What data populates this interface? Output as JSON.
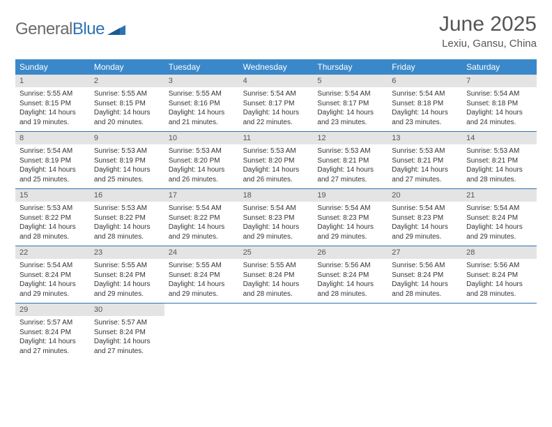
{
  "logo": {
    "part1": "General",
    "part2": "Blue"
  },
  "title": "June 2025",
  "location": "Lexiu, Gansu, China",
  "colors": {
    "header_bg": "#3a88c9",
    "header_text": "#ffffff",
    "daynum_bg": "#e4e4e4",
    "border": "#2d72b5",
    "logo_gray": "#6a6a6a",
    "logo_blue": "#2d72b5"
  },
  "day_names": [
    "Sunday",
    "Monday",
    "Tuesday",
    "Wednesday",
    "Thursday",
    "Friday",
    "Saturday"
  ],
  "weeks": [
    [
      {
        "n": "1",
        "sr": "5:55 AM",
        "ss": "8:15 PM",
        "dl": "14 hours and 19 minutes."
      },
      {
        "n": "2",
        "sr": "5:55 AM",
        "ss": "8:15 PM",
        "dl": "14 hours and 20 minutes."
      },
      {
        "n": "3",
        "sr": "5:55 AM",
        "ss": "8:16 PM",
        "dl": "14 hours and 21 minutes."
      },
      {
        "n": "4",
        "sr": "5:54 AM",
        "ss": "8:17 PM",
        "dl": "14 hours and 22 minutes."
      },
      {
        "n": "5",
        "sr": "5:54 AM",
        "ss": "8:17 PM",
        "dl": "14 hours and 23 minutes."
      },
      {
        "n": "6",
        "sr": "5:54 AM",
        "ss": "8:18 PM",
        "dl": "14 hours and 23 minutes."
      },
      {
        "n": "7",
        "sr": "5:54 AM",
        "ss": "8:18 PM",
        "dl": "14 hours and 24 minutes."
      }
    ],
    [
      {
        "n": "8",
        "sr": "5:54 AM",
        "ss": "8:19 PM",
        "dl": "14 hours and 25 minutes."
      },
      {
        "n": "9",
        "sr": "5:53 AM",
        "ss": "8:19 PM",
        "dl": "14 hours and 25 minutes."
      },
      {
        "n": "10",
        "sr": "5:53 AM",
        "ss": "8:20 PM",
        "dl": "14 hours and 26 minutes."
      },
      {
        "n": "11",
        "sr": "5:53 AM",
        "ss": "8:20 PM",
        "dl": "14 hours and 26 minutes."
      },
      {
        "n": "12",
        "sr": "5:53 AM",
        "ss": "8:21 PM",
        "dl": "14 hours and 27 minutes."
      },
      {
        "n": "13",
        "sr": "5:53 AM",
        "ss": "8:21 PM",
        "dl": "14 hours and 27 minutes."
      },
      {
        "n": "14",
        "sr": "5:53 AM",
        "ss": "8:21 PM",
        "dl": "14 hours and 28 minutes."
      }
    ],
    [
      {
        "n": "15",
        "sr": "5:53 AM",
        "ss": "8:22 PM",
        "dl": "14 hours and 28 minutes."
      },
      {
        "n": "16",
        "sr": "5:53 AM",
        "ss": "8:22 PM",
        "dl": "14 hours and 28 minutes."
      },
      {
        "n": "17",
        "sr": "5:54 AM",
        "ss": "8:22 PM",
        "dl": "14 hours and 29 minutes."
      },
      {
        "n": "18",
        "sr": "5:54 AM",
        "ss": "8:23 PM",
        "dl": "14 hours and 29 minutes."
      },
      {
        "n": "19",
        "sr": "5:54 AM",
        "ss": "8:23 PM",
        "dl": "14 hours and 29 minutes."
      },
      {
        "n": "20",
        "sr": "5:54 AM",
        "ss": "8:23 PM",
        "dl": "14 hours and 29 minutes."
      },
      {
        "n": "21",
        "sr": "5:54 AM",
        "ss": "8:24 PM",
        "dl": "14 hours and 29 minutes."
      }
    ],
    [
      {
        "n": "22",
        "sr": "5:54 AM",
        "ss": "8:24 PM",
        "dl": "14 hours and 29 minutes."
      },
      {
        "n": "23",
        "sr": "5:55 AM",
        "ss": "8:24 PM",
        "dl": "14 hours and 29 minutes."
      },
      {
        "n": "24",
        "sr": "5:55 AM",
        "ss": "8:24 PM",
        "dl": "14 hours and 29 minutes."
      },
      {
        "n": "25",
        "sr": "5:55 AM",
        "ss": "8:24 PM",
        "dl": "14 hours and 28 minutes."
      },
      {
        "n": "26",
        "sr": "5:56 AM",
        "ss": "8:24 PM",
        "dl": "14 hours and 28 minutes."
      },
      {
        "n": "27",
        "sr": "5:56 AM",
        "ss": "8:24 PM",
        "dl": "14 hours and 28 minutes."
      },
      {
        "n": "28",
        "sr": "5:56 AM",
        "ss": "8:24 PM",
        "dl": "14 hours and 28 minutes."
      }
    ],
    [
      {
        "n": "29",
        "sr": "5:57 AM",
        "ss": "8:24 PM",
        "dl": "14 hours and 27 minutes."
      },
      {
        "n": "30",
        "sr": "5:57 AM",
        "ss": "8:24 PM",
        "dl": "14 hours and 27 minutes."
      },
      null,
      null,
      null,
      null,
      null
    ]
  ],
  "labels": {
    "sunrise": "Sunrise:",
    "sunset": "Sunset:",
    "daylight": "Daylight:"
  }
}
